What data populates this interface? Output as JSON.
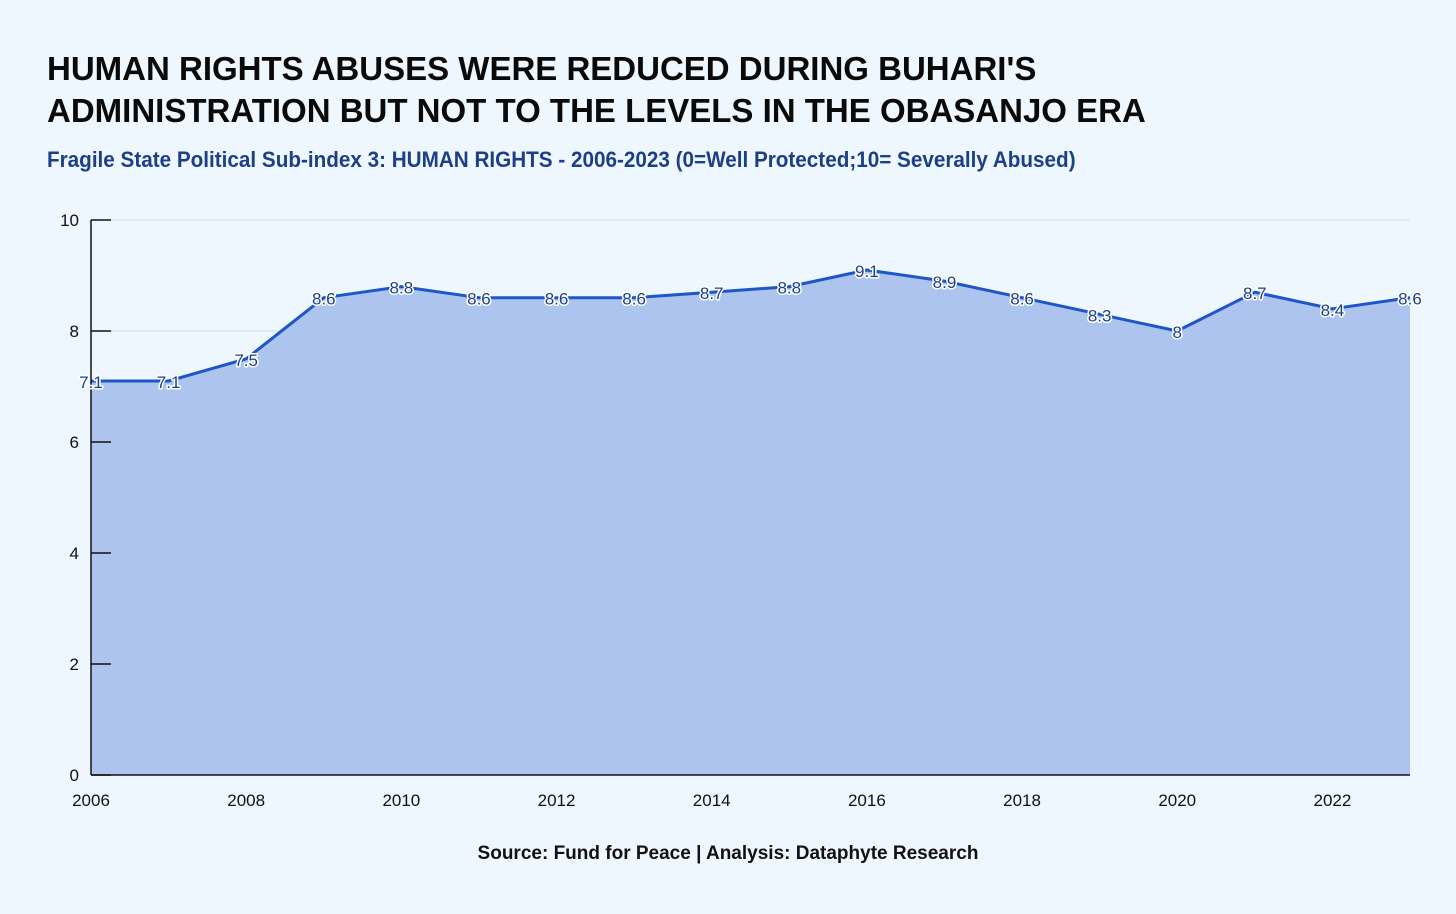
{
  "chart_data": {
    "type": "area",
    "title": "HUMAN RIGHTS ABUSES WERE REDUCED DURING BUHARI'S\nADMINISTRATION BUT NOT TO THE LEVELS IN THE OBASANJO ERA",
    "subtitle": "Fragile State Political Sub-index 3: HUMAN RIGHTS - 2006-2023 (0=Well Protected;10= Severally Abused)",
    "source": "Source: Fund for Peace | Analysis: Dataphyte Research",
    "x": [
      2006,
      2007,
      2008,
      2009,
      2010,
      2011,
      2012,
      2013,
      2014,
      2015,
      2016,
      2017,
      2018,
      2019,
      2020,
      2021,
      2022,
      2023
    ],
    "values": [
      7.1,
      7.1,
      7.5,
      8.6,
      8.8,
      8.6,
      8.6,
      8.6,
      8.7,
      8.8,
      9.1,
      8.9,
      8.6,
      8.3,
      8,
      8.7,
      8.4,
      8.6
    ],
    "x_ticks": [
      2006,
      2008,
      2010,
      2012,
      2014,
      2016,
      2018,
      2020,
      2022
    ],
    "y_ticks": [
      0,
      2,
      4,
      6,
      8,
      10
    ],
    "xlim": [
      2006,
      2023
    ],
    "ylim": [
      0,
      10
    ],
    "xlabel": "",
    "ylabel": "",
    "grid": true,
    "legend": "none",
    "colors": {
      "line": "#1e56c9",
      "fill": "#acc4ee",
      "grid": "#cfe6cf",
      "axis": "#111111",
      "data_label": "#1d3f86"
    }
  }
}
